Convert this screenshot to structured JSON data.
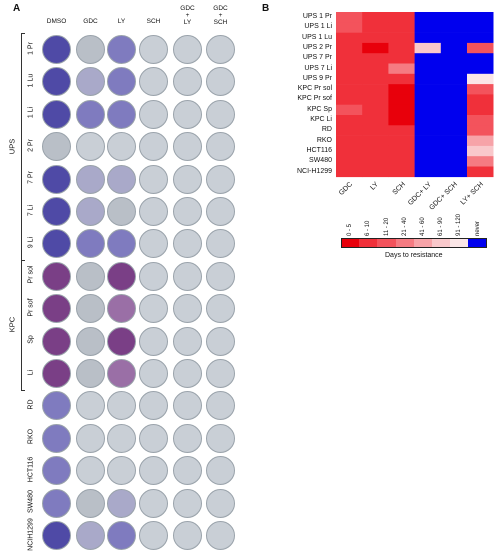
{
  "panel_a": {
    "label": "A",
    "columns": [
      "DMSO",
      "GDC",
      "LY",
      "SCH",
      "GDC\n+\nLY",
      "GDC\n+\nSCH"
    ],
    "groups": [
      {
        "label": "UPS",
        "rows": [
          "1 Pr",
          "1 Lu",
          "1 Li",
          "2 Pr",
          "7 Pr",
          "7 Li",
          "9 Li"
        ]
      },
      {
        "label": "KPC",
        "rows": [
          "Pr sol",
          "Pr sof",
          "Sp",
          "Li"
        ]
      },
      {
        "label": "",
        "rows": [
          "RD",
          "RKO",
          "HCT116",
          "SW480",
          "NCIH1299"
        ]
      }
    ],
    "wells": [
      [
        "heavy-blue",
        "light",
        "medium-blue",
        "faint",
        "faint",
        "faint"
      ],
      [
        "heavy-blue",
        "light-blue",
        "medium-blue",
        "faint",
        "faint",
        "faint"
      ],
      [
        "heavy-blue",
        "medium-blue",
        "medium-blue",
        "faint",
        "faint",
        "faint"
      ],
      [
        "light",
        "faint",
        "faint",
        "faint",
        "faint",
        "faint"
      ],
      [
        "heavy-blue",
        "light-blue",
        "light-blue",
        "faint",
        "faint",
        "faint"
      ],
      [
        "heavy-blue",
        "light-blue",
        "light",
        "faint",
        "faint",
        "faint"
      ],
      [
        "heavy-blue",
        "medium-blue",
        "medium-blue",
        "faint",
        "faint",
        "faint"
      ],
      [
        "heavy-purple",
        "light",
        "heavy-purple",
        "faint",
        "faint",
        "faint"
      ],
      [
        "heavy-purple",
        "light",
        "medium-purple",
        "faint",
        "faint",
        "faint"
      ],
      [
        "heavy-purple",
        "light",
        "heavy-purple",
        "faint",
        "faint",
        "faint"
      ],
      [
        "heavy-purple",
        "light",
        "medium-purple",
        "faint",
        "faint",
        "faint"
      ],
      [
        "medium-blue",
        "faint",
        "faint",
        "faint",
        "faint",
        "faint"
      ],
      [
        "medium-blue",
        "faint",
        "faint",
        "faint",
        "faint",
        "faint"
      ],
      [
        "medium-blue",
        "faint",
        "faint",
        "faint",
        "faint",
        "faint"
      ],
      [
        "medium-blue",
        "light",
        "light-blue",
        "faint",
        "faint",
        "faint"
      ],
      [
        "heavy-blue",
        "light-blue",
        "medium-blue",
        "faint",
        "faint",
        "faint"
      ]
    ],
    "well_colors": {
      "heavy-blue": "#4f4aa6",
      "medium-blue": "#7f7bbf",
      "light-blue": "#a9a9c9",
      "heavy-purple": "#7a3f86",
      "medium-purple": "#9a6fa6",
      "light": "#b9bfc7",
      "faint": "#c9cfd6"
    }
  },
  "panel_b": {
    "label": "B",
    "rows": [
      "UPS 1 Pr",
      "UPS 1 Li",
      "UPS 1 Lu",
      "UPS 2 Pr",
      "UPS 7 Pr",
      "UPS 7 Li",
      "UPS 9 Pr",
      "KPC Pr sol",
      "KPC Pr sof",
      "KPC Sp",
      "KPC Li",
      "RD",
      "RKO",
      "HCT116",
      "SW480",
      "NCI-H1299"
    ],
    "columns": [
      "GDC",
      "LY",
      "SCH",
      "GDC+ LY",
      "GDC+ SCH",
      "LY+ SCH"
    ],
    "cells": [
      [
        2,
        1,
        1,
        7,
        7,
        7
      ],
      [
        2,
        1,
        1,
        7,
        7,
        7
      ],
      [
        1,
        1,
        1,
        7,
        7,
        7
      ],
      [
        1,
        0,
        1,
        5,
        7,
        2
      ],
      [
        1,
        1,
        1,
        7,
        7,
        7
      ],
      [
        1,
        1,
        3,
        7,
        7,
        7
      ],
      [
        1,
        1,
        1,
        7,
        7,
        6
      ],
      [
        1,
        1,
        0,
        7,
        7,
        2
      ],
      [
        1,
        1,
        0,
        7,
        7,
        1
      ],
      [
        2,
        1,
        0,
        7,
        7,
        1
      ],
      [
        1,
        1,
        0,
        7,
        7,
        2
      ],
      [
        1,
        1,
        1,
        7,
        7,
        2
      ],
      [
        1,
        1,
        1,
        7,
        7,
        4
      ],
      [
        1,
        1,
        1,
        7,
        7,
        5
      ],
      [
        1,
        1,
        1,
        7,
        7,
        3
      ],
      [
        1,
        1,
        1,
        7,
        7,
        1
      ]
    ],
    "legend": {
      "bins": [
        "0 - 5",
        "6 - 10",
        "11 - 20",
        "21 - 40",
        "41 - 60",
        "61 - 90",
        "91 - 120",
        "never"
      ],
      "colors": [
        "#e8000b",
        "#f0303a",
        "#f3535c",
        "#f57b82",
        "#f7a3a8",
        "#f9c8cb",
        "#fbe6e7",
        "#0000ee"
      ],
      "title": "Days to resistance"
    }
  }
}
